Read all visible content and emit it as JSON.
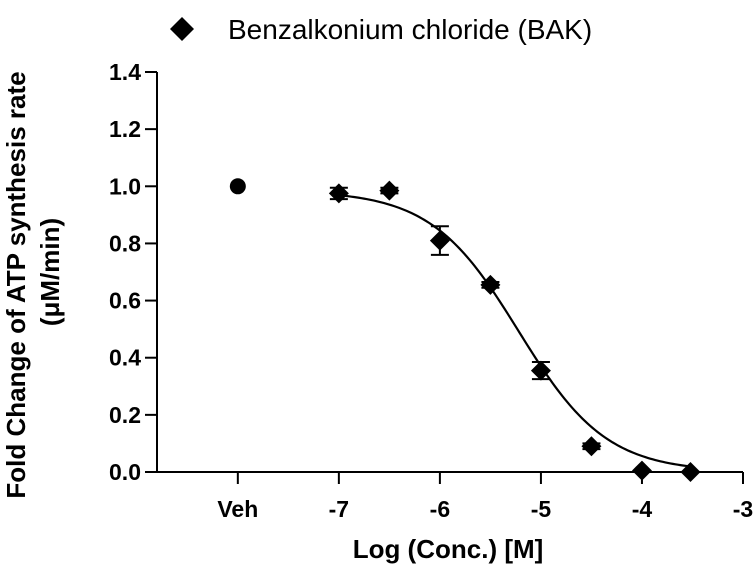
{
  "chart_data": {
    "type": "scatter",
    "title": "",
    "xlabel": "Log (Conc.) [M]",
    "ylabel_line1": "Fold Change of ATP synthesis rate",
    "ylabel_line2": "(μM/min)",
    "xlim": [
      -8.8,
      -3
    ],
    "ylim": [
      0,
      1.4
    ],
    "x_ticks": [
      {
        "value": -8,
        "label": "Veh"
      },
      {
        "value": -7,
        "label": "-7"
      },
      {
        "value": -6,
        "label": "-6"
      },
      {
        "value": -5,
        "label": "-5"
      },
      {
        "value": -4,
        "label": "-4"
      },
      {
        "value": -3,
        "label": "-3"
      }
    ],
    "y_ticks": [
      {
        "value": 0,
        "label": "0.0"
      },
      {
        "value": 0.2,
        "label": "0.2"
      },
      {
        "value": 0.4,
        "label": "0.4"
      },
      {
        "value": 0.6,
        "label": "0.6"
      },
      {
        "value": 0.8,
        "label": "0.8"
      },
      {
        "value": 1.0,
        "label": "1.0"
      },
      {
        "value": 1.2,
        "label": "1.2"
      },
      {
        "value": 1.4,
        "label": "1.4"
      }
    ],
    "legend": {
      "position": "top",
      "entries": [
        {
          "label": "Benzalkonium chloride (BAK)",
          "marker": "diamond"
        }
      ]
    },
    "vehicle": {
      "x": -8,
      "y": 1.0,
      "marker": "circle"
    },
    "series": [
      {
        "name": "Benzalkonium chloride (BAK)",
        "marker": "diamond",
        "points": [
          {
            "x": -7.0,
            "y": 0.975,
            "err": 0.02
          },
          {
            "x": -6.5,
            "y": 0.985,
            "err": 0.01
          },
          {
            "x": -6.0,
            "y": 0.81,
            "err": 0.05
          },
          {
            "x": -5.5,
            "y": 0.655,
            "err": 0.01
          },
          {
            "x": -5.0,
            "y": 0.355,
            "err": 0.03
          },
          {
            "x": -4.5,
            "y": 0.09,
            "err": 0.01
          },
          {
            "x": -4.0,
            "y": 0.005,
            "err": 0.0
          },
          {
            "x": -3.52,
            "y": 0.0,
            "err": 0.0
          }
        ]
      }
    ],
    "fit": {
      "type": "sigmoidal",
      "top": 0.985,
      "bottom": 0.0,
      "log_ic50": -5.22,
      "hill": 1.0,
      "x_range": [
        -7.0,
        -3.52
      ]
    }
  }
}
